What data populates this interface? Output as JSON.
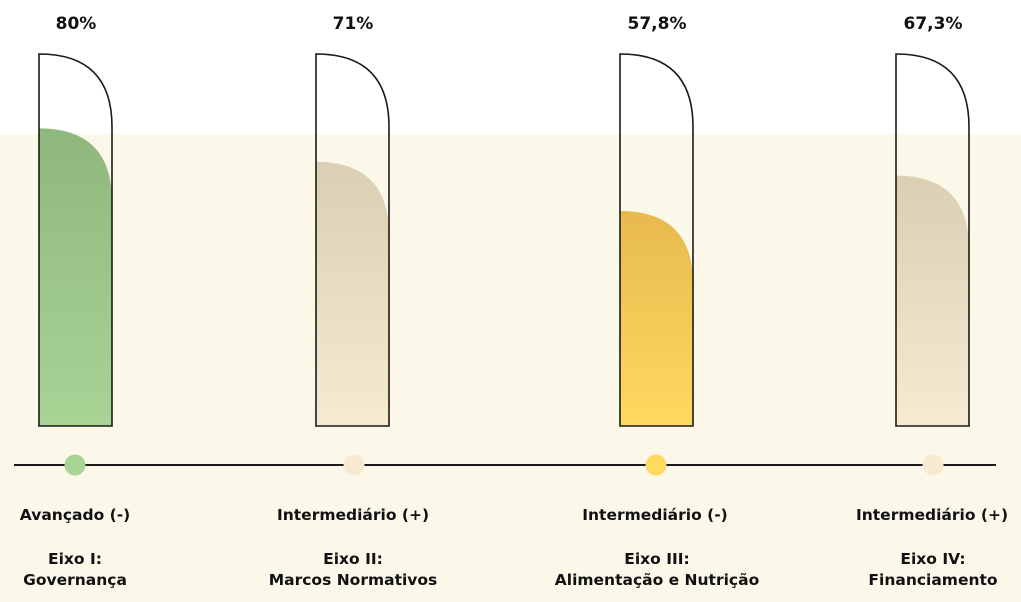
{
  "chart_data": {
    "type": "bar",
    "ylim": [
      0,
      100
    ],
    "items": [
      {
        "value": 80,
        "value_label": "80%",
        "level": "Avançado (-)",
        "axis": "Eixo I:",
        "axis_name": "Governança",
        "color_top": "#8fb77d",
        "color_bottom": "#a8d496"
      },
      {
        "value": 71,
        "value_label": "71%",
        "level": "Intermediário (+)",
        "axis": "Eixo II:",
        "axis_name": "Marcos Normativos",
        "color_top": "#dbcfb3",
        "color_bottom": "#f6ebd0"
      },
      {
        "value": 57.8,
        "value_label": "57,8%",
        "level": "Intermediário (-)",
        "axis": "Eixo III:",
        "axis_name": "Alimentação e Nutrição",
        "color_top": "#e7b94f",
        "color_bottom": "#ffd960"
      },
      {
        "value": 67.3,
        "value_label": "67,3%",
        "level": "Intermediário (+)",
        "axis": "Eixo IV:",
        "axis_name": "Financiamento",
        "color_top": "#dbcfb3",
        "color_bottom": "#f6ebd0"
      }
    ]
  }
}
